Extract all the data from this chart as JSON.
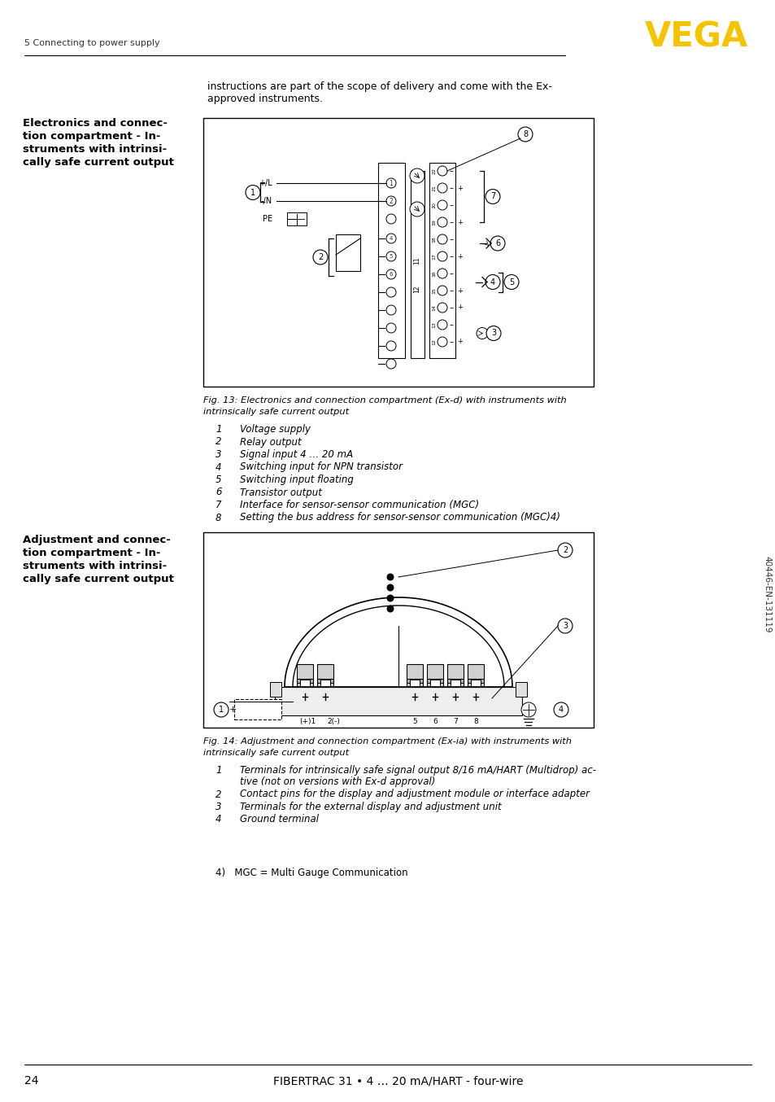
{
  "page_number": "24",
  "footer_text": "FIBERTRAC 31 • 4 … 20 mA/HART - four-wire",
  "header_section": "5 Connecting to power supply",
  "vega_color": "#F5C400",
  "text_color": "#000000",
  "bg_color": "#FFFFFF",
  "intro_text_line1": "instructions are part of the scope of delivery and come with the Ex-",
  "intro_text_line2": "approved instruments.",
  "section1_title_lines": [
    "Electronics and connec-",
    "tion compartment - In-",
    "struments with intrinsi-",
    "cally safe current output"
  ],
  "fig13_caption_line1": "Fig. 13: Electronics and connection compartment (Ex-d) with instruments with",
  "fig13_caption_line2": "intrinsically safe current output",
  "fig13_items": [
    [
      "1",
      "Voltage supply"
    ],
    [
      "2",
      "Relay output"
    ],
    [
      "3",
      "Signal input 4 … 20 mA"
    ],
    [
      "4",
      "Switching input for NPN transistor"
    ],
    [
      "5",
      "Switching input floating"
    ],
    [
      "6",
      "Transistor output"
    ],
    [
      "7",
      "Interface for sensor-sensor communication (MGC)"
    ],
    [
      "8",
      "Setting the bus address for sensor-sensor communication (MGC)4)"
    ]
  ],
  "section2_title_lines": [
    "Adjustment and connec-",
    "tion compartment - In-",
    "struments with intrinsi-",
    "cally safe current output"
  ],
  "fig14_caption_line1": "Fig. 14: Adjustment and connection compartment (Ex-ia) with instruments with",
  "fig14_caption_line2": "intrinsically safe current output",
  "fig14_items": [
    [
      "1",
      "Terminals for intrinsically safe signal output 8/16 mA/HART (Multidrop) ac-",
      "tive (not on versions with Ex-d approval)"
    ],
    [
      "2",
      "Contact pins for the display and adjustment module or interface adapter"
    ],
    [
      "3",
      "Terminals for the external display and adjustment unit"
    ],
    [
      "4",
      "Ground terminal"
    ]
  ],
  "footnote": "4)   MGC = Multi Gauge Communication",
  "sidebar_text": "40446-EN-131119"
}
